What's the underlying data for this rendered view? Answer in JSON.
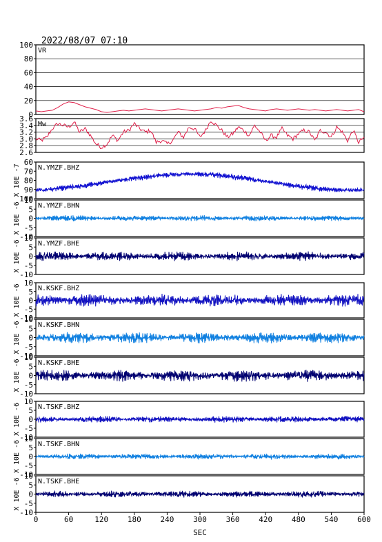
{
  "header": {
    "timestamp": "2022/08/07  07:10"
  },
  "chart_data": {
    "type": "line",
    "x_axis": {
      "label": "SEC",
      "range": [
        0,
        600
      ],
      "ticks": [
        "0",
        "60",
        "120",
        "180",
        "240",
        "300",
        "360",
        "420",
        "480",
        "540",
        "600"
      ]
    },
    "panels": [
      {
        "id": "vr",
        "label": "VR",
        "color": "#e0204a",
        "kind": "vr",
        "y_ticks": [
          "100",
          "80",
          "60",
          "40",
          "20",
          "0"
        ],
        "y_range": [
          0,
          100
        ],
        "grid": true,
        "series": {
          "x": [
            0,
            10,
            20,
            30,
            40,
            50,
            60,
            70,
            80,
            90,
            100,
            110,
            120,
            130,
            140,
            150,
            160,
            170,
            180,
            190,
            200,
            210,
            220,
            230,
            240,
            250,
            260,
            270,
            280,
            290,
            300,
            310,
            320,
            330,
            340,
            350,
            360,
            370,
            380,
            390,
            400,
            410,
            420,
            430,
            440,
            450,
            460,
            470,
            480,
            490,
            500,
            510,
            520,
            530,
            540,
            550,
            560,
            570,
            580,
            590,
            600
          ],
          "y": [
            5,
            4,
            5,
            6,
            10,
            15,
            18,
            17,
            14,
            11,
            9,
            7,
            4,
            3,
            4,
            5,
            6,
            5,
            6,
            7,
            8,
            7,
            6,
            5,
            6,
            7,
            8,
            7,
            6,
            5,
            6,
            7,
            8,
            10,
            9,
            11,
            12,
            13,
            10,
            8,
            7,
            6,
            5,
            7,
            8,
            7,
            6,
            7,
            8,
            7,
            6,
            7,
            6,
            5,
            6,
            7,
            6,
            5,
            6,
            7,
            4
          ]
        }
      },
      {
        "id": "mw",
        "label": "Mw",
        "color": "#e0204a",
        "kind": "mw",
        "y_ticks": [
          "3.6",
          "3.4",
          "3.2",
          "3.0",
          "2.8",
          "2.6"
        ],
        "y_range": [
          2.6,
          3.6
        ],
        "grid": true,
        "series": {
          "x": [
            0,
            10,
            20,
            30,
            40,
            50,
            60,
            70,
            80,
            90,
            100,
            110,
            120,
            130,
            140,
            150,
            160,
            170,
            180,
            190,
            200,
            210,
            220,
            230,
            240,
            250,
            260,
            270,
            280,
            290,
            300,
            310,
            320,
            330,
            340,
            350,
            360,
            370,
            380,
            390,
            400,
            410,
            420,
            430,
            440,
            450,
            460,
            470,
            480,
            490,
            500,
            510,
            520,
            530,
            540,
            550,
            560,
            570,
            580,
            590,
            600
          ],
          "y": [
            3.0,
            2.95,
            3.05,
            3.3,
            3.45,
            3.4,
            3.35,
            3.5,
            3.2,
            3.3,
            3.1,
            2.85,
            2.75,
            2.85,
            3.1,
            2.95,
            3.2,
            3.25,
            3.45,
            3.3,
            3.2,
            3.25,
            2.9,
            2.95,
            2.85,
            2.95,
            3.2,
            3.05,
            3.35,
            3.3,
            3.05,
            3.25,
            3.55,
            3.4,
            3.25,
            3.05,
            3.15,
            3.35,
            3.25,
            3.1,
            3.4,
            3.2,
            2.95,
            3.1,
            3.05,
            3.3,
            3.1,
            3.0,
            3.15,
            3.25,
            3.2,
            2.95,
            3.25,
            3.2,
            3.05,
            3.35,
            3.2,
            2.95,
            3.25,
            2.9,
            3.05
          ]
        }
      },
      {
        "id": "ymzf-bhz",
        "label": "N.YMZF.BHZ",
        "color": "#1010d0",
        "kind": "ymzf-bhz",
        "unit": "X 10E -7",
        "y_ticks": [
          "60",
          "70",
          "80",
          "90",
          "100"
        ],
        "y_range": [
          60,
          100
        ],
        "amplitude_rel": 0.07,
        "freq_hz": 0.5
      },
      {
        "id": "ymzf-bhn",
        "label": "N.YMZF.BHN",
        "color": "#1080e0",
        "kind": "wave",
        "unit": "X 10E -6",
        "y_ticks": [
          "10",
          "5",
          "0",
          "-5",
          "-10"
        ],
        "y_range": [
          -10,
          10
        ],
        "amplitude_rel": 0.016,
        "freq_hz": 0.6
      },
      {
        "id": "ymzf-bhe",
        "label": "N.YMZF.BHE",
        "color": "#000070",
        "kind": "wave",
        "unit": "X 10E -6",
        "y_ticks": [
          "10",
          "5",
          "0",
          "-5",
          "-10"
        ],
        "y_range": [
          -10,
          10
        ],
        "amplitude_rel": 0.025,
        "freq_hz": 0.55
      },
      {
        "id": "kskf-bhz",
        "label": "N.KSKF.BHZ",
        "color": "#1010c0",
        "kind": "wave",
        "unit": "X 10E -6",
        "y_ticks": [
          "10",
          "5",
          "0",
          "-5",
          "-10"
        ],
        "y_range": [
          -10,
          10
        ],
        "amplitude_rel": 0.035,
        "freq_hz": 0.45
      },
      {
        "id": "kskf-bhn",
        "label": "N.KSKF.BHN",
        "color": "#1080e0",
        "kind": "wave",
        "unit": "X 10E -6",
        "y_ticks": [
          "10",
          "5",
          "0",
          "-5",
          "-10"
        ],
        "y_range": [
          -10,
          10
        ],
        "amplitude_rel": 0.03,
        "freq_hz": 0.5
      },
      {
        "id": "kskf-bhe",
        "label": "N.KSKF.BHE",
        "color": "#000070",
        "kind": "wave",
        "unit": "X 10E -6",
        "y_ticks": [
          "10",
          "5",
          "0",
          "-5",
          "-10"
        ],
        "y_range": [
          -10,
          10
        ],
        "amplitude_rel": 0.032,
        "freq_hz": 0.5
      },
      {
        "id": "tskf-bhz",
        "label": "N.TSKF.BHZ",
        "color": "#1010c0",
        "kind": "wave",
        "unit": "X 10E -6",
        "y_ticks": [
          "10",
          "5",
          "0",
          "-5",
          "-10"
        ],
        "y_range": [
          -10,
          10
        ],
        "amplitude_rel": 0.018,
        "freq_hz": 0.6
      },
      {
        "id": "tskf-bhn",
        "label": "N.TSKF.BHN",
        "color": "#1080e0",
        "kind": "wave",
        "unit": "X 10E -6",
        "y_ticks": [
          "10",
          "5",
          "0",
          "-5",
          "-10"
        ],
        "y_range": [
          -10,
          10
        ],
        "amplitude_rel": 0.016,
        "freq_hz": 0.6
      },
      {
        "id": "tskf-bhe",
        "label": "N.TSKF.BHE",
        "color": "#000070",
        "kind": "wave",
        "unit": "X 10E -6",
        "y_ticks": [
          "10",
          "5",
          "0",
          "-5",
          "-10"
        ],
        "y_range": [
          -10,
          10
        ],
        "amplitude_rel": 0.018,
        "freq_hz": 0.6
      }
    ]
  }
}
